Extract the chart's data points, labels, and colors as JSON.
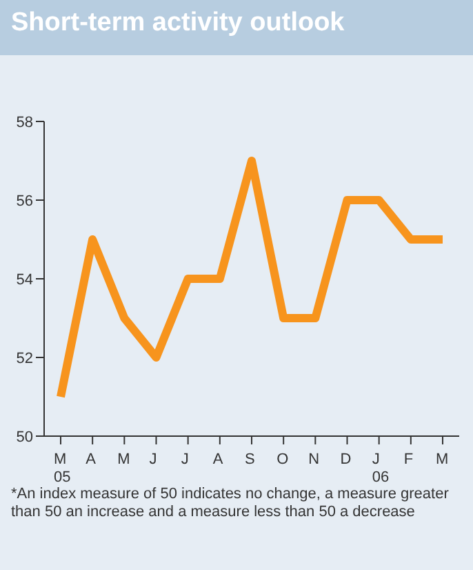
{
  "chart_data": {
    "type": "line",
    "title": "Short-term activity outlook",
    "categories": [
      "M\n05",
      "A",
      "M",
      "J",
      "J",
      "A",
      "S",
      "O",
      "N",
      "D",
      "J\n06",
      "F",
      "M"
    ],
    "values": [
      51,
      55,
      53,
      52,
      54,
      54,
      57,
      53,
      53,
      56,
      56,
      55,
      55
    ],
    "color": "#f7941d",
    "ylim": [
      50,
      58
    ],
    "yticks": [
      50,
      52,
      54,
      56,
      58
    ],
    "grid": false,
    "legend": false,
    "marker": "none",
    "line_style": "solid",
    "annotations": [
      "*An index measure of 50 indicates no change, a measure greater than 50 an increase and a measure less than 50 a decrease"
    ]
  }
}
